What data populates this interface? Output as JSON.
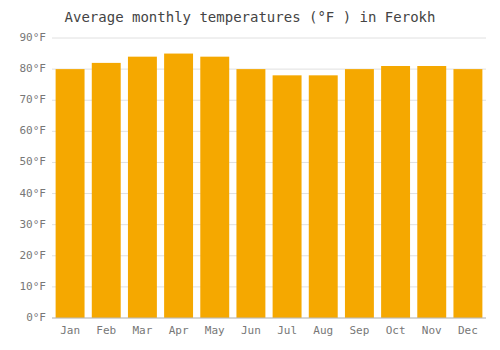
{
  "chart_data": {
    "type": "bar",
    "title": "Average monthly temperatures (°F ) in Ferokh",
    "categories": [
      "Jan",
      "Feb",
      "Mar",
      "Apr",
      "May",
      "Jun",
      "Jul",
      "Aug",
      "Sep",
      "Oct",
      "Nov",
      "Dec"
    ],
    "values": [
      80,
      82,
      84,
      85,
      84,
      80,
      78,
      78,
      80,
      81,
      81,
      80
    ],
    "color": "#F5A800",
    "ylim": [
      0,
      90
    ],
    "yticks": [
      {
        "value": 0,
        "label": "0°F"
      },
      {
        "value": 10,
        "label": "10°F"
      },
      {
        "value": 20,
        "label": "20°F"
      },
      {
        "value": 30,
        "label": "30°F"
      },
      {
        "value": 40,
        "label": "40°F"
      },
      {
        "value": 50,
        "label": "50°F"
      },
      {
        "value": 60,
        "label": "60°F"
      },
      {
        "value": 70,
        "label": "70°F"
      },
      {
        "value": 80,
        "label": "80°F"
      },
      {
        "value": 90,
        "label": "90°F"
      }
    ],
    "grid": true
  }
}
